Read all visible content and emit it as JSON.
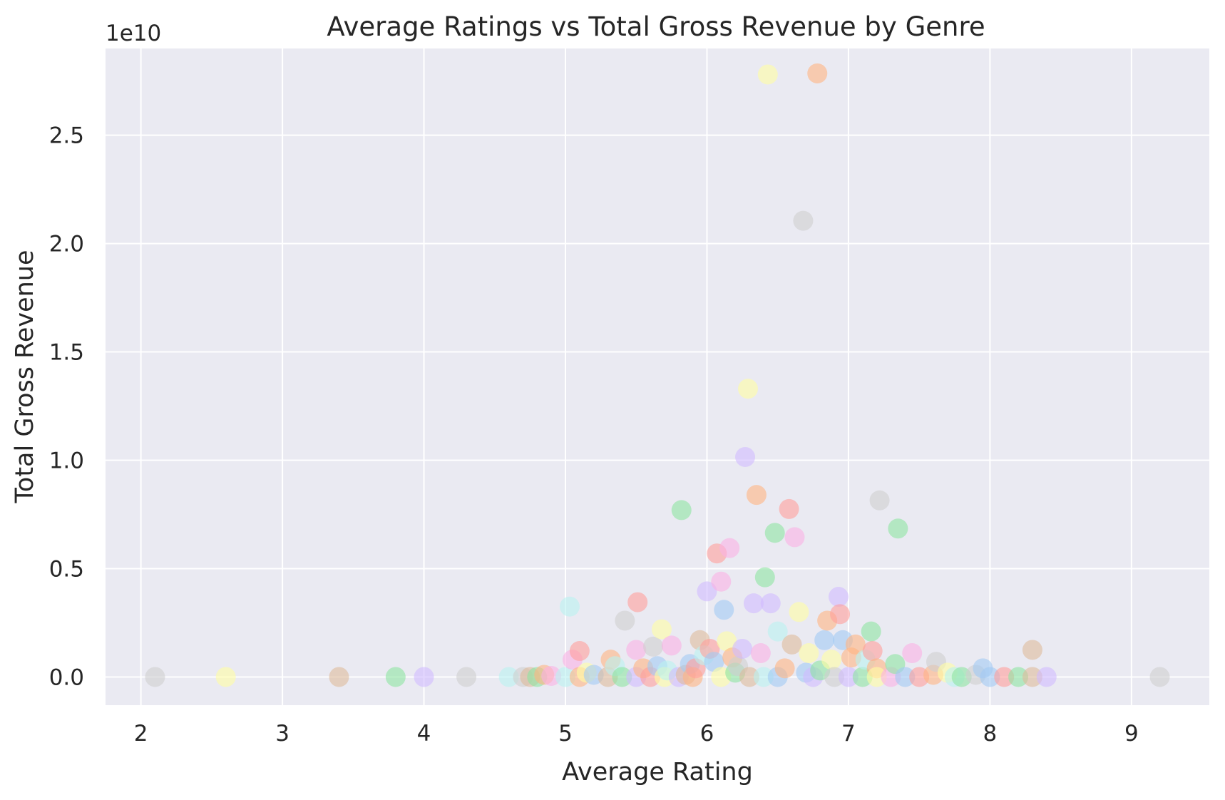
{
  "chart_data": {
    "type": "scatter",
    "title": "Average Ratings vs Total Gross Revenue by Genre",
    "xlabel": "Average Rating",
    "ylabel": "Total Gross Revenue",
    "offset_label": "1e10",
    "xlim": [
      1.75,
      9.55
    ],
    "ylim": [
      -0.13,
      2.9
    ],
    "x_ticks": [
      2,
      3,
      4,
      5,
      6,
      7,
      8,
      9
    ],
    "y_ticks": [
      0.0,
      0.5,
      1.0,
      1.5,
      2.0,
      2.5
    ],
    "x_tick_labels": [
      "2",
      "3",
      "4",
      "5",
      "6",
      "7",
      "8",
      "9"
    ],
    "y_tick_labels": [
      "0.0",
      "0.5",
      "1.0",
      "1.5",
      "2.0",
      "2.5"
    ],
    "grid": true,
    "background": "#eaeaf2",
    "grid_color": "#ffffff",
    "marker_opacity": 0.6,
    "palette": [
      "#a1c9f4",
      "#ffb482",
      "#8de5a1",
      "#ff9f9b",
      "#d0bbff",
      "#debb9b",
      "#fab0e4",
      "#cfcfcf",
      "#fffea3",
      "#b9f2f0"
    ],
    "points": [
      {
        "x": 2.1,
        "y": 0.0,
        "c": 7
      },
      {
        "x": 2.6,
        "y": 0.0,
        "c": 8
      },
      {
        "x": 3.4,
        "y": 0.0,
        "c": 5
      },
      {
        "x": 3.8,
        "y": 0.0,
        "c": 2
      },
      {
        "x": 4.0,
        "y": 0.0,
        "c": 4
      },
      {
        "x": 4.3,
        "y": 0.0,
        "c": 7
      },
      {
        "x": 4.6,
        "y": 0.0,
        "c": 9
      },
      {
        "x": 4.7,
        "y": 0.0,
        "c": 7
      },
      {
        "x": 4.75,
        "y": 0.0,
        "c": 5
      },
      {
        "x": 4.8,
        "y": 0.0,
        "c": 2
      },
      {
        "x": 4.85,
        "y": 0.01,
        "c": 1
      },
      {
        "x": 4.9,
        "y": 0.005,
        "c": 6
      },
      {
        "x": 5.0,
        "y": 0.0,
        "c": 9
      },
      {
        "x": 5.05,
        "y": 0.08,
        "c": 6
      },
      {
        "x": 5.1,
        "y": 0.12,
        "c": 3
      },
      {
        "x": 5.1,
        "y": 0.0,
        "c": 1
      },
      {
        "x": 5.03,
        "y": 0.325,
        "c": 9
      },
      {
        "x": 5.15,
        "y": 0.02,
        "c": 8
      },
      {
        "x": 5.2,
        "y": 0.01,
        "c": 0
      },
      {
        "x": 5.3,
        "y": 0.0,
        "c": 5
      },
      {
        "x": 5.32,
        "y": 0.08,
        "c": 1
      },
      {
        "x": 5.35,
        "y": 0.05,
        "c": 9
      },
      {
        "x": 5.4,
        "y": 0.0,
        "c": 2
      },
      {
        "x": 5.42,
        "y": 0.26,
        "c": 7
      },
      {
        "x": 5.5,
        "y": 0.0,
        "c": 4
      },
      {
        "x": 5.5,
        "y": 0.125,
        "c": 6
      },
      {
        "x": 5.51,
        "y": 0.345,
        "c": 3
      },
      {
        "x": 5.55,
        "y": 0.04,
        "c": 1
      },
      {
        "x": 5.6,
        "y": 0.0,
        "c": 3
      },
      {
        "x": 5.62,
        "y": 0.14,
        "c": 7
      },
      {
        "x": 5.65,
        "y": 0.05,
        "c": 0
      },
      {
        "x": 5.68,
        "y": 0.22,
        "c": 8
      },
      {
        "x": 5.7,
        "y": 0.0,
        "c": 8
      },
      {
        "x": 5.72,
        "y": 0.03,
        "c": 9
      },
      {
        "x": 5.75,
        "y": 0.145,
        "c": 6
      },
      {
        "x": 5.8,
        "y": 0.0,
        "c": 4
      },
      {
        "x": 5.82,
        "y": 0.77,
        "c": 2
      },
      {
        "x": 5.85,
        "y": 0.01,
        "c": 5
      },
      {
        "x": 5.88,
        "y": 0.06,
        "c": 0
      },
      {
        "x": 5.9,
        "y": 0.0,
        "c": 1
      },
      {
        "x": 5.92,
        "y": 0.04,
        "c": 3
      },
      {
        "x": 5.95,
        "y": 0.17,
        "c": 5
      },
      {
        "x": 5.98,
        "y": 0.1,
        "c": 9
      },
      {
        "x": 6.0,
        "y": 0.395,
        "c": 4
      },
      {
        "x": 6.02,
        "y": 0.13,
        "c": 3
      },
      {
        "x": 6.05,
        "y": 0.07,
        "c": 0
      },
      {
        "x": 6.07,
        "y": 0.57,
        "c": 3
      },
      {
        "x": 6.1,
        "y": 0.44,
        "c": 6
      },
      {
        "x": 6.1,
        "y": 0.0,
        "c": 8
      },
      {
        "x": 6.12,
        "y": 0.31,
        "c": 0
      },
      {
        "x": 6.14,
        "y": 0.165,
        "c": 8
      },
      {
        "x": 6.16,
        "y": 0.595,
        "c": 6
      },
      {
        "x": 6.18,
        "y": 0.09,
        "c": 1
      },
      {
        "x": 6.2,
        "y": 0.02,
        "c": 2
      },
      {
        "x": 6.22,
        "y": 0.05,
        "c": 7
      },
      {
        "x": 6.25,
        "y": 0.13,
        "c": 4
      },
      {
        "x": 6.27,
        "y": 1.015,
        "c": 4
      },
      {
        "x": 6.29,
        "y": 1.33,
        "c": 8
      },
      {
        "x": 6.3,
        "y": 0.0,
        "c": 5
      },
      {
        "x": 6.33,
        "y": 0.34,
        "c": 4
      },
      {
        "x": 6.35,
        "y": 0.84,
        "c": 1
      },
      {
        "x": 6.38,
        "y": 0.11,
        "c": 6
      },
      {
        "x": 6.4,
        "y": 0.0,
        "c": 9
      },
      {
        "x": 6.41,
        "y": 0.46,
        "c": 2
      },
      {
        "x": 6.43,
        "y": 2.78,
        "c": 8
      },
      {
        "x": 6.45,
        "y": 0.34,
        "c": 4
      },
      {
        "x": 6.48,
        "y": 0.665,
        "c": 2
      },
      {
        "x": 6.5,
        "y": 0.21,
        "c": 9
      },
      {
        "x": 6.5,
        "y": 0.0,
        "c": 0
      },
      {
        "x": 6.55,
        "y": 0.04,
        "c": 1
      },
      {
        "x": 6.58,
        "y": 0.775,
        "c": 3
      },
      {
        "x": 6.6,
        "y": 0.15,
        "c": 5
      },
      {
        "x": 6.62,
        "y": 0.645,
        "c": 6
      },
      {
        "x": 6.65,
        "y": 0.3,
        "c": 8
      },
      {
        "x": 6.68,
        "y": 2.105,
        "c": 7
      },
      {
        "x": 6.7,
        "y": 0.02,
        "c": 0
      },
      {
        "x": 6.72,
        "y": 0.11,
        "c": 8
      },
      {
        "x": 6.75,
        "y": 0.0,
        "c": 4
      },
      {
        "x": 6.78,
        "y": 2.785,
        "c": 1
      },
      {
        "x": 6.8,
        "y": 0.03,
        "c": 2
      },
      {
        "x": 6.83,
        "y": 0.17,
        "c": 0
      },
      {
        "x": 6.85,
        "y": 0.26,
        "c": 1
      },
      {
        "x": 6.88,
        "y": 0.08,
        "c": 8
      },
      {
        "x": 6.9,
        "y": 0.0,
        "c": 7
      },
      {
        "x": 6.93,
        "y": 0.37,
        "c": 4
      },
      {
        "x": 6.94,
        "y": 0.29,
        "c": 3
      },
      {
        "x": 6.96,
        "y": 0.17,
        "c": 0
      },
      {
        "x": 7.0,
        "y": 0.0,
        "c": 4
      },
      {
        "x": 7.02,
        "y": 0.09,
        "c": 1
      },
      {
        "x": 7.05,
        "y": 0.15,
        "c": 1
      },
      {
        "x": 7.1,
        "y": 0.0,
        "c": 2
      },
      {
        "x": 7.12,
        "y": 0.08,
        "c": 9
      },
      {
        "x": 7.16,
        "y": 0.21,
        "c": 2
      },
      {
        "x": 7.17,
        "y": 0.12,
        "c": 3
      },
      {
        "x": 7.2,
        "y": 0.04,
        "c": 1
      },
      {
        "x": 7.2,
        "y": 0.0,
        "c": 8
      },
      {
        "x": 7.22,
        "y": 0.815,
        "c": 7
      },
      {
        "x": 7.3,
        "y": 0.0,
        "c": 6
      },
      {
        "x": 7.33,
        "y": 0.06,
        "c": 2
      },
      {
        "x": 7.35,
        "y": 0.685,
        "c": 2
      },
      {
        "x": 7.4,
        "y": 0.0,
        "c": 0
      },
      {
        "x": 7.45,
        "y": 0.11,
        "c": 6
      },
      {
        "x": 7.5,
        "y": 0.0,
        "c": 3
      },
      {
        "x": 7.6,
        "y": 0.01,
        "c": 1
      },
      {
        "x": 7.62,
        "y": 0.07,
        "c": 7
      },
      {
        "x": 7.7,
        "y": 0.02,
        "c": 8
      },
      {
        "x": 7.75,
        "y": 0.0,
        "c": 9
      },
      {
        "x": 7.8,
        "y": 0.0,
        "c": 2
      },
      {
        "x": 7.9,
        "y": 0.01,
        "c": 7
      },
      {
        "x": 7.95,
        "y": 0.04,
        "c": 0
      },
      {
        "x": 8.0,
        "y": 0.0,
        "c": 0
      },
      {
        "x": 8.1,
        "y": 0.0,
        "c": 3
      },
      {
        "x": 8.2,
        "y": 0.0,
        "c": 2
      },
      {
        "x": 8.3,
        "y": 0.125,
        "c": 5
      },
      {
        "x": 8.3,
        "y": 0.0,
        "c": 5
      },
      {
        "x": 8.4,
        "y": 0.0,
        "c": 4
      },
      {
        "x": 9.2,
        "y": 0.0,
        "c": 7
      }
    ]
  }
}
